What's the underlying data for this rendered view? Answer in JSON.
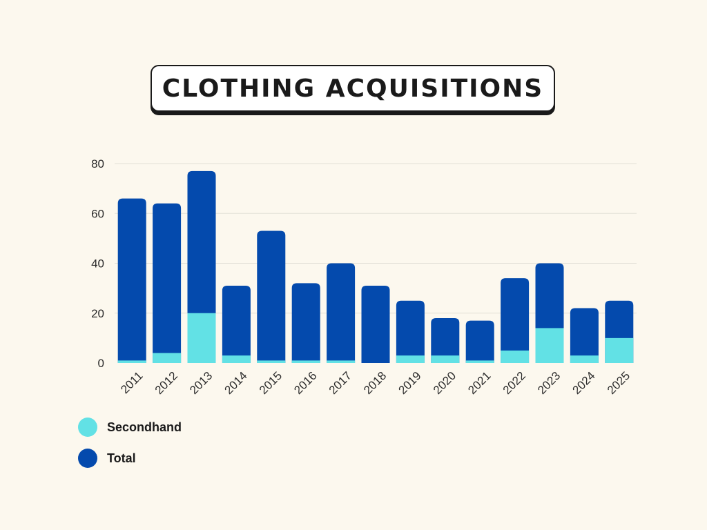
{
  "chart_data": {
    "type": "bar",
    "stacked": true,
    "title": "CLOTHING ACQUISITIONS",
    "xlabel": "",
    "ylabel": "",
    "ylim": [
      0,
      80
    ],
    "yticks": [
      0,
      20,
      40,
      60,
      80
    ],
    "grid": true,
    "legend_position": "bottom-left",
    "categories": [
      "2011",
      "2012",
      "2013",
      "2014",
      "2015",
      "2016",
      "2017",
      "2018",
      "2019",
      "2020",
      "2021",
      "2022",
      "2023",
      "2024",
      "2025"
    ],
    "series": [
      {
        "name": "Secondhand",
        "color": "#62E1E5",
        "values": [
          1,
          4,
          20,
          3,
          1,
          1,
          1,
          0,
          3,
          3,
          1,
          5,
          14,
          3,
          10
        ]
      },
      {
        "name": "Total",
        "color": "#044AAD",
        "values": [
          66,
          64,
          77,
          31,
          53,
          32,
          40,
          31,
          25,
          18,
          17,
          34,
          40,
          22,
          25
        ]
      }
    ]
  },
  "colors": {
    "background": "#FCF8EE",
    "grid": "#E2DFD6",
    "axis_text": "#2B2B2B"
  }
}
